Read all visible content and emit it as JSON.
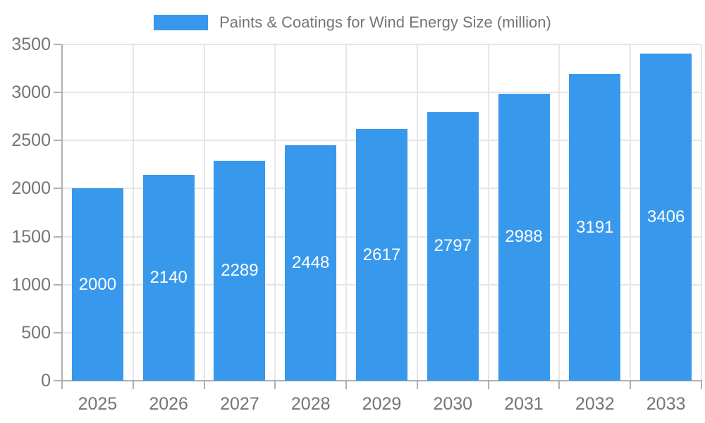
{
  "legend": {
    "label": "Paints & Coatings for Wind Energy Size (million)"
  },
  "chart_data": {
    "type": "bar",
    "title": "Paints & Coatings for Wind Energy Size (million)",
    "categories": [
      "2025",
      "2026",
      "2027",
      "2028",
      "2029",
      "2030",
      "2031",
      "2032",
      "2033"
    ],
    "values": [
      2000,
      2140,
      2289,
      2448,
      2617,
      2797,
      2988,
      3191,
      3406
    ],
    "xlabel": "",
    "ylabel": "",
    "ylim": [
      0,
      3500
    ],
    "yticks": [
      0,
      500,
      1000,
      1500,
      2000,
      2500,
      3000,
      3500
    ],
    "grid": true,
    "legend_position": "top-center",
    "bar_labels_inside": true,
    "colors": {
      "bar": "#3899EC",
      "bar_label": "#ffffff",
      "grid": "#e6e6e6",
      "axis": "#b0b0b0",
      "tick_label": "#757575",
      "title": "#757575",
      "background": "#ffffff"
    }
  }
}
